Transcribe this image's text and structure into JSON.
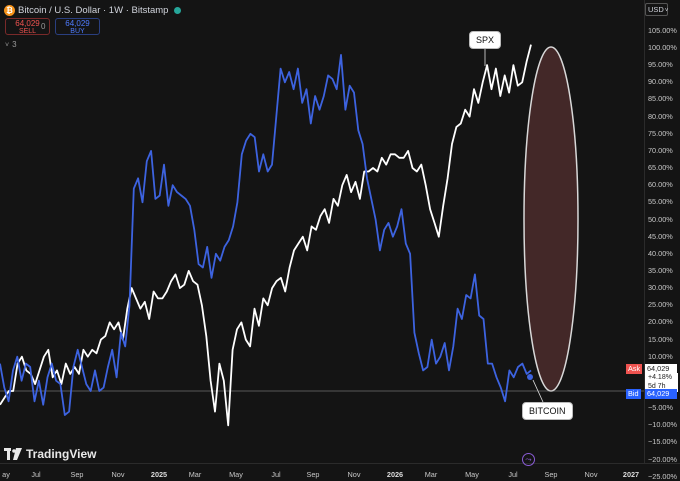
{
  "header": {
    "coin_letter": "₿",
    "symbol": "Bitcoin / U.S. Dollar · 1W · Bitstamp"
  },
  "trade": {
    "sell_price": "64,029",
    "sell_label": "SELL",
    "spread": "0",
    "buy_price": "64,029",
    "buy_label": "BUY"
  },
  "indicators_toggle": {
    "chevron": "˅",
    "count": "3"
  },
  "currency_selector": {
    "value": "USD",
    "chevron": "˅"
  },
  "annotations": {
    "spx_label": "SPX",
    "bitcoin_label": "BITCOIN"
  },
  "branding": {
    "name": "TradingView"
  },
  "price_scale": {
    "labels": [
      "105.00%",
      "100.00%",
      "95.00%",
      "90.00%",
      "85.00%",
      "80.00%",
      "75.00%",
      "70.00%",
      "65.00%",
      "60.00%",
      "55.00%",
      "50.00%",
      "45.00%",
      "40.00%",
      "35.00%",
      "30.00%",
      "25.00%",
      "20.00%",
      "15.00%",
      "10.00%",
      "5.00%",
      "−5.00%",
      "−10.00%",
      "−15.00%",
      "−20.00%",
      "−25.00%"
    ],
    "values": [
      105,
      100,
      95,
      90,
      85,
      80,
      75,
      70,
      65,
      60,
      55,
      50,
      45,
      40,
      35,
      30,
      25,
      20,
      15,
      10,
      5,
      -5,
      -10,
      -15,
      -20,
      -25
    ]
  },
  "price_tags": {
    "ask_label": "Ask",
    "ask_value": "64,029",
    "change": "+4.18%",
    "countdown": "5d 7h",
    "bid_label": "Bid",
    "bid_value": "64,029"
  },
  "time_axis": {
    "labels": [
      "ay",
      "Jul",
      "Sep",
      "Nov",
      "2025",
      "Mar",
      "May",
      "Jul",
      "Sep",
      "Nov",
      "2026",
      "Mar",
      "May",
      "Jul",
      "Sep",
      "Nov",
      "2027"
    ],
    "year_labels": [
      "2025",
      "2026",
      "2027"
    ]
  },
  "goto_realtime_icon": "⤳",
  "colors": {
    "background": "#141414",
    "bitcoin_line": "#3d63e0",
    "spx_line": "#ffffff",
    "highlight_ellipse_fill": "#4a2b2b",
    "highlight_ellipse_stroke": "#d8d8d8",
    "ask": "#ef5350",
    "bid": "#2962ff"
  },
  "chart_data": {
    "type": "line",
    "x_unit": "weeks (index along time axis)",
    "y_unit": "percent change",
    "ylim": [
      -25,
      107
    ],
    "baseline": 0,
    "series": [
      {
        "name": "SPX",
        "color": "#ffffff",
        "values": [
          -4,
          -2,
          0,
          0,
          8,
          10,
          6,
          5,
          2,
          6,
          10,
          12,
          4,
          6,
          2,
          8,
          5,
          7,
          5,
          12,
          10,
          12,
          11,
          15,
          16,
          20,
          18,
          20,
          15,
          24,
          30,
          27,
          24,
          26,
          21,
          29,
          27,
          27,
          29,
          32,
          34,
          30,
          31,
          35,
          32,
          31,
          25,
          16,
          3,
          -6,
          8,
          3,
          -10,
          12,
          18,
          20,
          15,
          13,
          24,
          19,
          27,
          25,
          30,
          32,
          33,
          29,
          36,
          41,
          43,
          45,
          41,
          48,
          47,
          51,
          53,
          49,
          56,
          54,
          60,
          63,
          58,
          61,
          56,
          64,
          64,
          65,
          64,
          68,
          66,
          69,
          69,
          68,
          68,
          70,
          65,
          64,
          66,
          60,
          53,
          49,
          45,
          54,
          62,
          72,
          77,
          78,
          82,
          80,
          88,
          84,
          90,
          95,
          88,
          94,
          86,
          92,
          87,
          95,
          89,
          90,
          96,
          101
        ]
      },
      {
        "name": "BITCOIN",
        "color": "#3d63e0",
        "values": [
          8,
          1,
          -3,
          6,
          10,
          3,
          8,
          7,
          -3,
          3,
          -4,
          4,
          8,
          3,
          2,
          -7,
          -6,
          7,
          12,
          7,
          2,
          0,
          6,
          0,
          1,
          7,
          12,
          4,
          17,
          13,
          25,
          59,
          62,
          55,
          67,
          70,
          56,
          57,
          66,
          54,
          60,
          58,
          57,
          56,
          54,
          47,
          37,
          36,
          42,
          33,
          40,
          38,
          42,
          44,
          48,
          55,
          69,
          73,
          75,
          74,
          64,
          69,
          64,
          66,
          80,
          94,
          90,
          93,
          88,
          94,
          84,
          88,
          78,
          86,
          82,
          86,
          92,
          91,
          88,
          98,
          82,
          89,
          87,
          76,
          72,
          62,
          56,
          50,
          41,
          47,
          49,
          45,
          48,
          53,
          43,
          40,
          17,
          11,
          6,
          7,
          15,
          8,
          10,
          14,
          6,
          13,
          24,
          21,
          28,
          27,
          34,
          22,
          21,
          8,
          8,
          4,
          1,
          -3,
          6,
          4,
          7,
          8,
          5,
          6
        ]
      }
    ],
    "annotations": [
      "SPX",
      "BITCOIN"
    ]
  }
}
